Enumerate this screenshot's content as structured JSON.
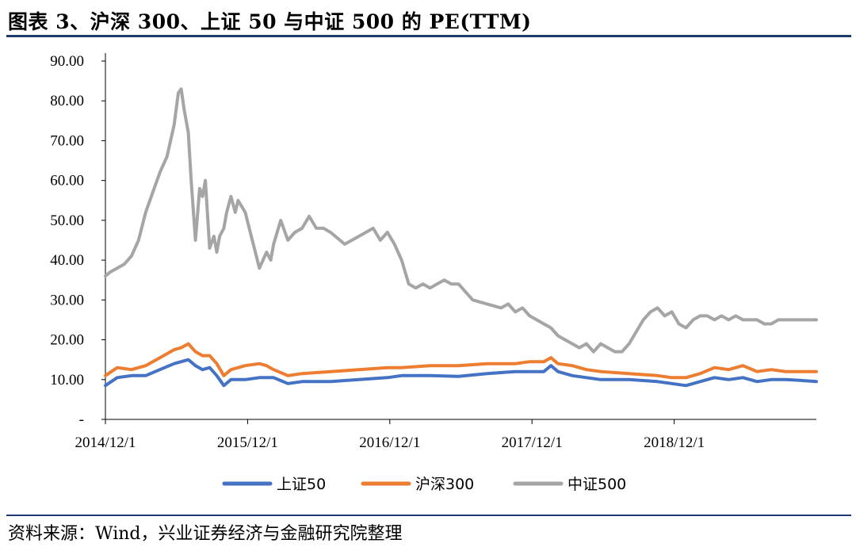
{
  "header": {
    "title": "图表 3、沪深 300、上证 50 与中证 500 的 PE(TTM)"
  },
  "footer": {
    "source": "资料来源：Wind，兴业证券经济与金融研究院整理"
  },
  "chart_data": {
    "type": "line",
    "title": "图表 3、沪深 300、上证 50 与中证 500 的 PE(TTM)",
    "xlabel": "",
    "ylabel": "",
    "ylim": [
      0,
      90
    ],
    "yticks": [
      0,
      10,
      20,
      30,
      40,
      50,
      60,
      70,
      80,
      90
    ],
    "ytick_labels": [
      "-",
      "10.00",
      "20.00",
      "30.00",
      "40.00",
      "50.00",
      "60.00",
      "70.00",
      "80.00",
      "90.00"
    ],
    "xlim": [
      2014.917,
      2019.917
    ],
    "xticks": [
      2014.917,
      2015.917,
      2016.917,
      2017.917,
      2018.917
    ],
    "xtick_labels": [
      "2014/12/1",
      "2015/12/1",
      "2016/12/1",
      "2017/12/1",
      "2018/12/1"
    ],
    "grid": false,
    "legend_position": "bottom",
    "series": [
      {
        "name": "上证50",
        "color": "#4472C4",
        "x": [
          2014.917,
          2015.0,
          2015.1,
          2015.2,
          2015.3,
          2015.4,
          2015.45,
          2015.5,
          2015.55,
          2015.6,
          2015.65,
          2015.7,
          2015.75,
          2015.8,
          2015.9,
          2016.0,
          2016.05,
          2016.1,
          2016.2,
          2016.3,
          2016.5,
          2016.7,
          2016.9,
          2017.0,
          2017.2,
          2017.4,
          2017.6,
          2017.8,
          2017.9,
          2018.0,
          2018.05,
          2018.1,
          2018.2,
          2018.3,
          2018.4,
          2018.6,
          2018.8,
          2018.9,
          2019.0,
          2019.1,
          2019.2,
          2019.3,
          2019.4,
          2019.5,
          2019.6,
          2019.7,
          2019.8,
          2019.917
        ],
        "values": [
          8.5,
          10.5,
          11.0,
          11.0,
          12.5,
          14.0,
          14.5,
          15.0,
          13.5,
          12.5,
          13.0,
          11.0,
          8.5,
          10.0,
          10.0,
          10.5,
          10.5,
          10.5,
          9.0,
          9.5,
          9.5,
          10.0,
          10.5,
          11.0,
          11.0,
          10.8,
          11.5,
          12.0,
          12.0,
          12.0,
          13.5,
          12.0,
          11.0,
          10.5,
          10.0,
          10.0,
          9.5,
          9.0,
          8.5,
          9.5,
          10.5,
          10.0,
          10.5,
          9.5,
          10.0,
          10.0,
          9.8,
          9.5
        ]
      },
      {
        "name": "沪深300",
        "color": "#ED7D31",
        "x": [
          2014.917,
          2015.0,
          2015.1,
          2015.2,
          2015.3,
          2015.4,
          2015.45,
          2015.5,
          2015.55,
          2015.6,
          2015.65,
          2015.7,
          2015.75,
          2015.8,
          2015.9,
          2016.0,
          2016.05,
          2016.1,
          2016.2,
          2016.3,
          2016.5,
          2016.7,
          2016.9,
          2017.0,
          2017.2,
          2017.4,
          2017.6,
          2017.8,
          2017.9,
          2018.0,
          2018.05,
          2018.1,
          2018.2,
          2018.3,
          2018.4,
          2018.6,
          2018.8,
          2018.9,
          2019.0,
          2019.1,
          2019.2,
          2019.3,
          2019.4,
          2019.5,
          2019.6,
          2019.7,
          2019.8,
          2019.917
        ],
        "values": [
          11.0,
          13.0,
          12.5,
          13.5,
          15.5,
          17.5,
          18.0,
          19.0,
          17.0,
          16.0,
          16.0,
          14.0,
          11.0,
          12.5,
          13.5,
          14.0,
          13.5,
          12.5,
          11.0,
          11.5,
          12.0,
          12.5,
          13.0,
          13.0,
          13.5,
          13.5,
          14.0,
          14.0,
          14.5,
          14.5,
          15.5,
          14.0,
          13.5,
          12.5,
          12.0,
          11.5,
          11.0,
          10.5,
          10.5,
          11.5,
          13.0,
          12.5,
          13.5,
          12.0,
          12.5,
          12.0,
          12.0,
          12.0
        ]
      },
      {
        "name": "中证500",
        "color": "#A5A5A5",
        "x": [
          2014.917,
          2014.95,
          2015.0,
          2015.05,
          2015.1,
          2015.15,
          2015.2,
          2015.25,
          2015.3,
          2015.35,
          2015.4,
          2015.43,
          2015.45,
          2015.47,
          2015.5,
          2015.52,
          2015.55,
          2015.58,
          2015.6,
          2015.62,
          2015.65,
          2015.68,
          2015.7,
          2015.72,
          2015.75,
          2015.77,
          2015.8,
          2015.83,
          2015.85,
          2015.9,
          2015.95,
          2016.0,
          2016.05,
          2016.08,
          2016.1,
          2016.15,
          2016.2,
          2016.25,
          2016.3,
          2016.35,
          2016.4,
          2016.45,
          2016.5,
          2016.6,
          2016.7,
          2016.8,
          2016.85,
          2016.9,
          2016.95,
          2017.0,
          2017.05,
          2017.1,
          2017.15,
          2017.2,
          2017.25,
          2017.3,
          2017.35,
          2017.4,
          2017.5,
          2017.6,
          2017.7,
          2017.75,
          2017.8,
          2017.85,
          2017.9,
          2017.95,
          2018.0,
          2018.05,
          2018.1,
          2018.15,
          2018.2,
          2018.25,
          2018.3,
          2018.35,
          2018.4,
          2018.45,
          2018.5,
          2018.55,
          2018.6,
          2018.65,
          2018.7,
          2018.75,
          2018.8,
          2018.85,
          2018.9,
          2018.95,
          2019.0,
          2019.05,
          2019.1,
          2019.15,
          2019.2,
          2019.25,
          2019.3,
          2019.35,
          2019.4,
          2019.45,
          2019.5,
          2019.55,
          2019.6,
          2019.65,
          2019.7,
          2019.75,
          2019.8,
          2019.85,
          2019.9,
          2019.917
        ],
        "values": [
          36,
          37,
          38,
          39,
          41,
          45,
          52,
          57,
          62,
          66,
          74,
          82,
          83,
          78,
          72,
          60,
          45,
          58,
          56,
          60,
          43,
          46,
          42,
          46,
          48,
          52,
          56,
          52,
          55,
          52,
          45,
          38,
          42,
          40,
          44,
          50,
          45,
          47,
          48,
          51,
          48,
          48,
          47,
          44,
          46,
          48,
          45,
          47,
          44,
          40,
          34,
          33,
          34,
          33,
          34,
          35,
          34,
          34,
          30,
          29,
          28,
          29,
          27,
          28,
          26,
          25,
          24,
          23,
          21,
          20,
          19,
          18,
          19,
          17,
          19,
          18,
          17,
          17,
          19,
          22,
          25,
          27,
          28,
          26,
          27,
          24,
          23,
          25,
          26,
          26,
          25,
          26,
          25,
          26,
          25,
          25,
          25,
          24,
          24,
          25,
          25,
          25,
          25,
          25,
          25,
          25
        ]
      }
    ]
  }
}
